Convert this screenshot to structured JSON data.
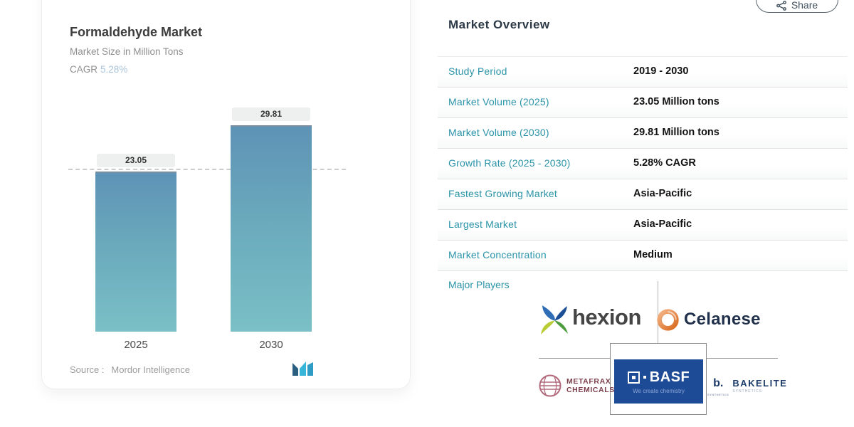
{
  "chart_card": {
    "title": "Formaldehyde Market",
    "subtitle": "Market Size in Million Tons",
    "cagr_label": "CAGR",
    "cagr_value": "5.28%",
    "source_label": "Source :",
    "source_value": "Mordor Intelligence"
  },
  "chart_data": {
    "type": "bar",
    "title": "Formaldehyde Market",
    "subtitle": "Market Size in Million Tons",
    "cagr": "5.28%",
    "categories": [
      "2025",
      "2030"
    ],
    "values": [
      23.05,
      29.81
    ],
    "bar_labels": [
      "23.05",
      "29.81"
    ],
    "unit": "Million Tons",
    "ylim": [
      0,
      33
    ],
    "reference_value": 23.05,
    "grid": false,
    "bar_gradient": [
      "#5e93b6",
      "#7ac0c6"
    ],
    "source": "Mordor Intelligence"
  },
  "overview": {
    "title": "Market Overview",
    "share_label": "Share",
    "rows": [
      {
        "label": "Study Period",
        "value": "2019 - 2030"
      },
      {
        "label": "Market Volume (2025)",
        "value": "23.05 Million tons"
      },
      {
        "label": "Market Volume (2030)",
        "value": "29.81 Million tons"
      },
      {
        "label": "Growth Rate (2025 - 2030)",
        "value": "5.28% CAGR"
      },
      {
        "label": "Fastest Growing Market",
        "value": "Asia-Pacific"
      },
      {
        "label": "Largest Market",
        "value": "Asia-Pacific"
      },
      {
        "label": "Market Concentration",
        "value": "Medium"
      }
    ],
    "major_players_label": "Major Players"
  },
  "logos": {
    "hexion_text": "hexion",
    "celanese_text": "Celanese",
    "metafrax_line1": "METAFRAX",
    "metafrax_line2": "CHEMICALS",
    "basf_word": "BASF",
    "basf_tagline": "We create chemistry",
    "bakelite_mark": "b.",
    "bakelite_word": "BAKELITE",
    "bakelite_sub": "SYNTHETICS"
  },
  "colors": {
    "label_teal": "#2a93a8",
    "cagr_blue": "#a9c3da",
    "basf_blue": "#1e4b96",
    "mordor_dark": "#2b5f80",
    "mordor_cyan": "#38b6d9"
  }
}
